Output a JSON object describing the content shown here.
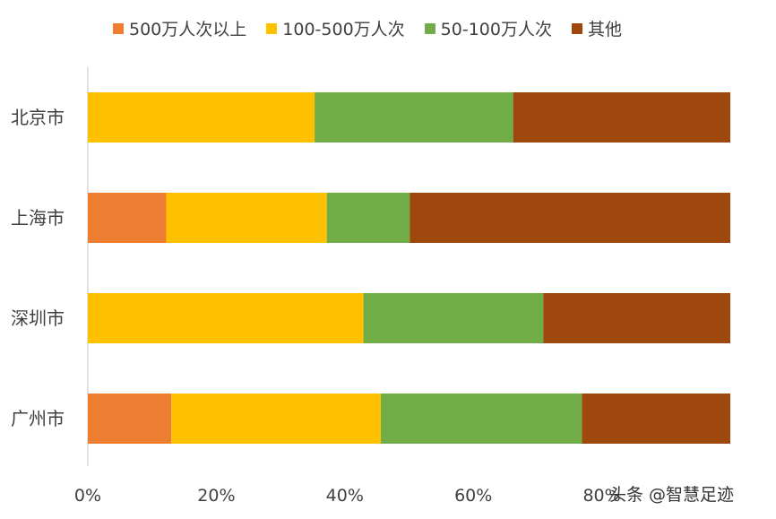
{
  "chart_data": {
    "type": "bar",
    "orientation": "horizontal",
    "stacked": true,
    "percent_stacked": true,
    "categories": [
      "北京市",
      "上海市",
      "深圳市",
      "广州市"
    ],
    "series": [
      {
        "name": "500万人次以上",
        "color": "#ED7D31",
        "values": [
          0,
          12.2,
          0,
          13.0
        ]
      },
      {
        "name": "100-500万人次",
        "color": "#FFC000",
        "values": [
          35.3,
          25.0,
          42.9,
          32.6
        ]
      },
      {
        "name": "50-100万人次",
        "color": "#70AD47",
        "values": [
          30.9,
          12.9,
          28.0,
          31.3
        ]
      },
      {
        "name": "其他",
        "color": "#9E480E",
        "values": [
          33.8,
          49.9,
          29.1,
          23.1
        ]
      }
    ],
    "xticks": [
      "0%",
      "20%",
      "40%",
      "60%",
      "80%"
    ],
    "xlim": [
      0,
      100
    ],
    "legend_position": "top",
    "grid": false
  },
  "watermark": "头条 @智慧足迹"
}
